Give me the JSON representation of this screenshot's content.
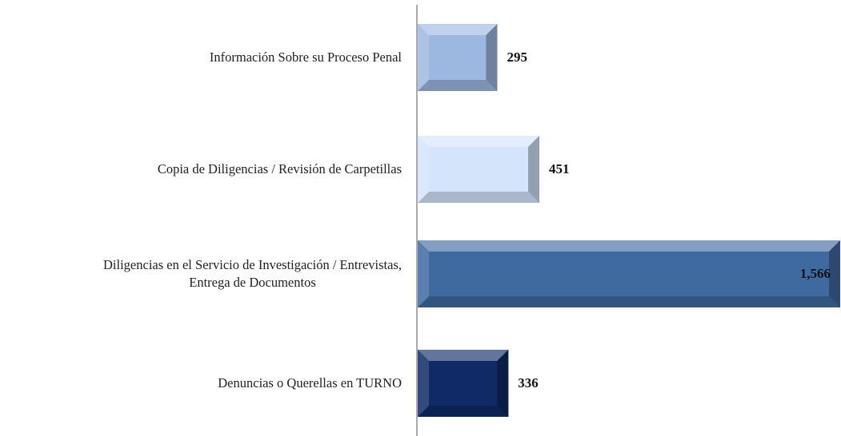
{
  "chart_data": {
    "type": "barh",
    "categories": [
      "Información Sobre su Proceso Penal",
      "Copia de Diligencias / Revisión de Carpetillas",
      "Diligencias en el Servicio de Investigación / Entrevistas,\nEntrega de Documentos",
      "Denuncias o Querellas en TURNO"
    ],
    "values": [
      295,
      451,
      1566,
      336
    ],
    "value_labels": [
      "295",
      "451",
      "1,566",
      "336"
    ],
    "colors": [
      "#9db8e0",
      "#d4e4fb",
      "#3f6aa0",
      "#0f2a66"
    ]
  }
}
